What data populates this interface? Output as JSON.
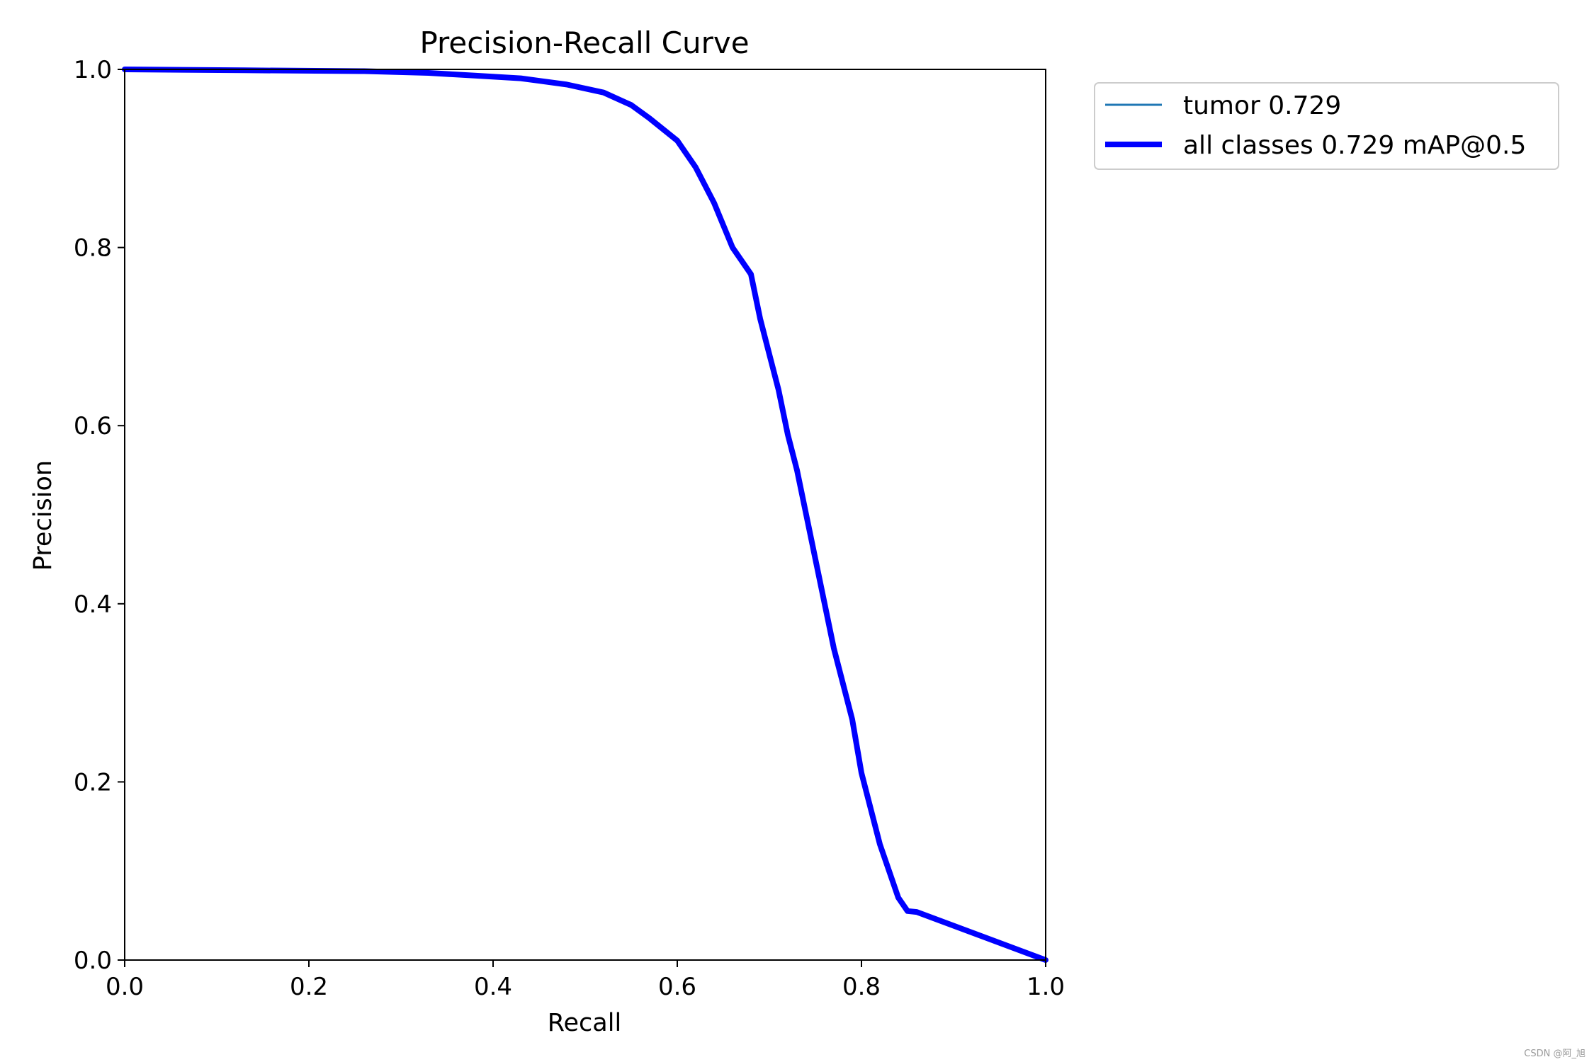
{
  "chart_data": {
    "type": "line",
    "title": "Precision-Recall Curve",
    "xlabel": "Recall",
    "ylabel": "Precision",
    "xlim": [
      0.0,
      1.0
    ],
    "ylim": [
      0.0,
      1.0
    ],
    "x_ticks": [
      "0.0",
      "0.2",
      "0.4",
      "0.6",
      "0.8",
      "1.0"
    ],
    "y_ticks": [
      "0.0",
      "0.2",
      "0.4",
      "0.6",
      "0.8",
      "1.0"
    ],
    "grid": false,
    "legend_position": "outside-top-right",
    "series": [
      {
        "name": "tumor 0.729",
        "color": "#1f77b4",
        "line": "thin",
        "x": [
          0.0,
          0.13,
          0.26,
          0.33,
          0.38,
          0.43,
          0.48,
          0.52,
          0.55,
          0.57,
          0.6,
          0.62,
          0.64,
          0.66,
          0.68,
          0.69,
          0.7,
          0.71,
          0.72,
          0.73,
          0.74,
          0.75,
          0.76,
          0.77,
          0.78,
          0.79,
          0.8,
          0.81,
          0.82,
          0.83,
          0.84,
          0.85,
          0.86,
          1.0
        ],
        "y": [
          1.0,
          0.999,
          0.998,
          0.996,
          0.993,
          0.99,
          0.983,
          0.974,
          0.96,
          0.945,
          0.92,
          0.89,
          0.85,
          0.8,
          0.77,
          0.72,
          0.68,
          0.64,
          0.59,
          0.55,
          0.5,
          0.45,
          0.4,
          0.35,
          0.31,
          0.27,
          0.21,
          0.17,
          0.13,
          0.1,
          0.07,
          0.055,
          0.054,
          0.0
        ]
      },
      {
        "name": "all classes 0.729 mAP@0.5",
        "color": "#0000ff",
        "line": "thick",
        "x": [
          0.0,
          0.13,
          0.26,
          0.33,
          0.38,
          0.43,
          0.48,
          0.52,
          0.55,
          0.57,
          0.6,
          0.62,
          0.64,
          0.66,
          0.68,
          0.69,
          0.7,
          0.71,
          0.72,
          0.73,
          0.74,
          0.75,
          0.76,
          0.77,
          0.78,
          0.79,
          0.8,
          0.81,
          0.82,
          0.83,
          0.84,
          0.85,
          0.86,
          1.0
        ],
        "y": [
          1.0,
          0.999,
          0.998,
          0.996,
          0.993,
          0.99,
          0.983,
          0.974,
          0.96,
          0.945,
          0.92,
          0.89,
          0.85,
          0.8,
          0.77,
          0.72,
          0.68,
          0.64,
          0.59,
          0.55,
          0.5,
          0.45,
          0.4,
          0.35,
          0.31,
          0.27,
          0.21,
          0.17,
          0.13,
          0.1,
          0.07,
          0.055,
          0.054,
          0.0
        ]
      }
    ]
  },
  "watermark": "CSDN @阿_旭"
}
